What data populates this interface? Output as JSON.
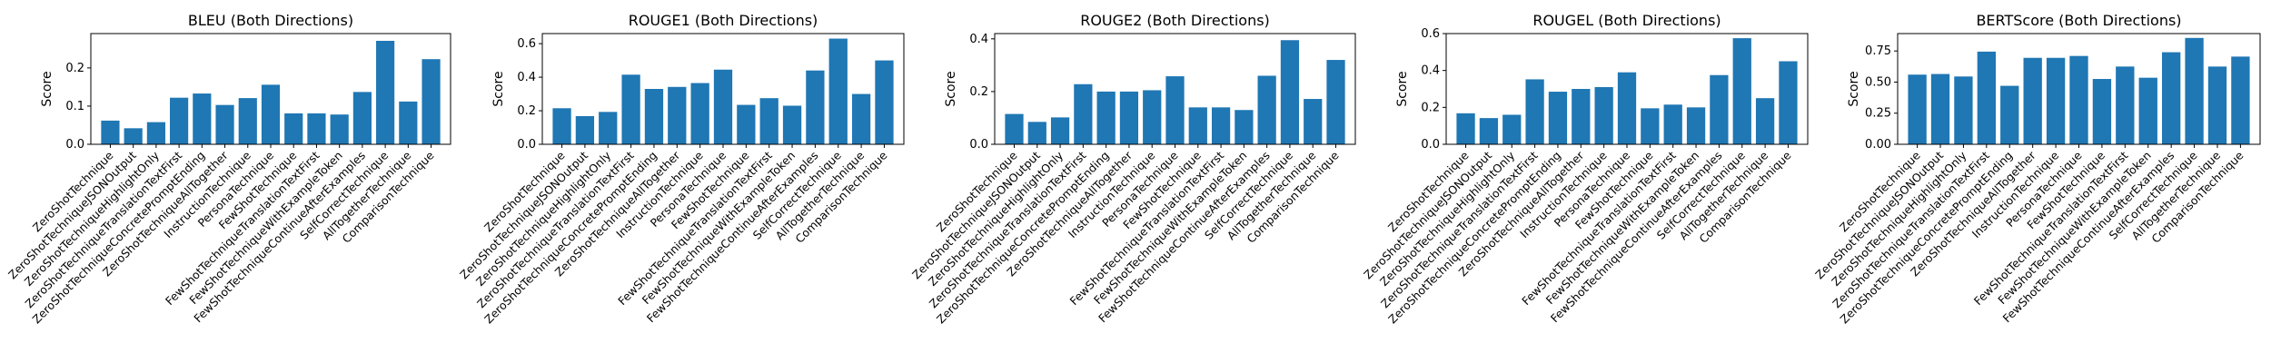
{
  "chart_data": [
    {
      "type": "bar",
      "title": "BLEU (Both Directions)",
      "ylabel": "Score",
      "ylim": [
        0,
        0.29
      ],
      "yticks": [
        0.0,
        0.1,
        0.2
      ],
      "categories": [
        "ZeroShotTechnique",
        "ZeroShotTechniqueJSONOutput",
        "ZeroShotTechniqueHighlightOnly",
        "ZeroShotTechniqueTranslationTextFirst",
        "ZeroShotTechniqueConcretePromptEnding",
        "ZeroShotTechniqueAllTogether",
        "InstructionTechnique",
        "PersonaTechnique",
        "FewShotTechnique",
        "FewShotTechniqueTranslationTextFirst",
        "FewShotTechniqueWithExampleToken",
        "FewShotTechniqueContinueAfterExamples",
        "SelfCorrectTechnique",
        "AllTogetherTechnique",
        "ComparisonTechnique"
      ],
      "values": [
        0.062,
        0.042,
        0.058,
        0.122,
        0.133,
        0.103,
        0.121,
        0.156,
        0.081,
        0.081,
        0.078,
        0.137,
        0.271,
        0.112,
        0.223
      ]
    },
    {
      "type": "bar",
      "title": "ROUGE1 (Both Directions)",
      "ylabel": "Score",
      "ylim": [
        0,
        0.66
      ],
      "yticks": [
        0.0,
        0.2,
        0.4,
        0.6
      ],
      "categories": [
        "ZeroShotTechnique",
        "ZeroShotTechniqueJSONOutput",
        "ZeroShotTechniqueHighlightOnly",
        "ZeroShotTechniqueTranslationTextFirst",
        "ZeroShotTechniqueConcretePromptEnding",
        "ZeroShotTechniqueAllTogether",
        "InstructionTechnique",
        "PersonaTechnique",
        "FewShotTechnique",
        "FewShotTechniqueTranslationTextFirst",
        "FewShotTechniqueWithExampleToken",
        "FewShotTechniqueContinueAfterExamples",
        "SelfCorrectTechnique",
        "AllTogetherTechnique",
        "ComparisonTechnique"
      ],
      "values": [
        0.215,
        0.168,
        0.193,
        0.415,
        0.33,
        0.342,
        0.365,
        0.445,
        0.235,
        0.275,
        0.23,
        0.44,
        0.63,
        0.3,
        0.5
      ]
    },
    {
      "type": "bar",
      "title": "ROUGE2 (Both Directions)",
      "ylabel": "Score",
      "ylim": [
        0,
        0.42
      ],
      "yticks": [
        0.0,
        0.2,
        0.4
      ],
      "categories": [
        "ZeroShotTechnique",
        "ZeroShotTechniqueJSONOutput",
        "ZeroShotTechniqueHighlightOnly",
        "ZeroShotTechniqueTranslationTextFirst",
        "ZeroShotTechniqueConcretePromptEnding",
        "ZeroShotTechniqueAllTogether",
        "InstructionTechnique",
        "PersonaTechnique",
        "FewShotTechnique",
        "FewShotTechniqueTranslationTextFirst",
        "FewShotTechniqueWithExampleToken",
        "FewShotTechniqueContinueAfterExamples",
        "SelfCorrectTechnique",
        "AllTogetherTechnique",
        "ComparisonTechnique"
      ],
      "values": [
        0.115,
        0.085,
        0.102,
        0.228,
        0.2,
        0.2,
        0.205,
        0.258,
        0.14,
        0.14,
        0.13,
        0.26,
        0.395,
        0.172,
        0.32
      ]
    },
    {
      "type": "bar",
      "title": "ROUGEL (Both Directions)",
      "ylabel": "Score",
      "ylim": [
        0,
        0.6
      ],
      "yticks": [
        0.0,
        0.2,
        0.4,
        0.6
      ],
      "categories": [
        "ZeroShotTechnique",
        "ZeroShotTechniqueJSONOutput",
        "ZeroShotTechniqueHighlightOnly",
        "ZeroShotTechniqueTranslationTextFirst",
        "ZeroShotTechniqueConcretePromptEnding",
        "ZeroShotTechniqueAllTogether",
        "InstructionTechnique",
        "PersonaTechnique",
        "FewShotTechnique",
        "FewShotTechniqueTranslationTextFirst",
        "FewShotTechniqueWithExampleToken",
        "FewShotTechniqueContinueAfterExamples",
        "SelfCorrectTechnique",
        "AllTogetherTechnique",
        "ComparisonTechnique"
      ],
      "values": [
        0.168,
        0.142,
        0.16,
        0.352,
        0.285,
        0.3,
        0.31,
        0.39,
        0.195,
        0.215,
        0.2,
        0.375,
        0.575,
        0.25,
        0.45
      ]
    },
    {
      "type": "bar",
      "title": "BERTScore (Both Directions)",
      "ylabel": "Score",
      "ylim": [
        0,
        0.89
      ],
      "yticks": [
        0.0,
        0.25,
        0.5,
        0.75
      ],
      "ytick_labels": [
        "0.00",
        "0.25",
        "0.50",
        "0.75"
      ],
      "categories": [
        "ZeroShotTechnique",
        "ZeroShotTechniqueJSONOutput",
        "ZeroShotTechniqueHighlightOnly",
        "ZeroShotTechniqueTranslationTextFirst",
        "ZeroShotTechniqueConcretePromptEnding",
        "ZeroShotTechniqueAllTogether",
        "InstructionTechnique",
        "PersonaTechnique",
        "FewShotTechnique",
        "FewShotTechniqueTranslationTextFirst",
        "FewShotTechniqueWithExampleToken",
        "FewShotTechniqueContinueAfterExamples",
        "SelfCorrectTechnique",
        "AllTogetherTechnique",
        "ComparisonTechnique"
      ],
      "values": [
        0.56,
        0.565,
        0.545,
        0.745,
        0.47,
        0.695,
        0.695,
        0.71,
        0.525,
        0.625,
        0.535,
        0.74,
        0.855,
        0.625,
        0.705
      ]
    }
  ],
  "style": {
    "bar_color": "#1f77b4",
    "axis_color": "#000000"
  }
}
